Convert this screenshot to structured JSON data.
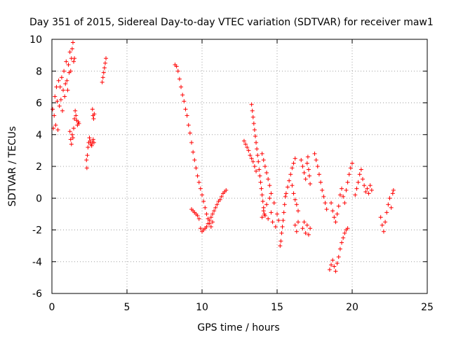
{
  "chart_data": {
    "type": "scatter",
    "title": "Day 351 of 2015, Sidereal Day-to-day VTEC variation (SDTVAR) for receiver maw1",
    "xlabel": "GPS time / hours",
    "ylabel": "SDTVAR / TECUs",
    "xlim": [
      0,
      25
    ],
    "ylim": [
      -6,
      10
    ],
    "xticks": [
      "0",
      "5",
      "10",
      "15",
      "20",
      "25"
    ],
    "yticks": [
      "-6",
      "-4",
      "-2",
      "0",
      "2",
      "4",
      "6",
      "8",
      "10"
    ],
    "grid": true,
    "marker": "+",
    "color": "#ff0000",
    "series": [
      {
        "name": "maw1",
        "points": [
          [
            0.05,
            5.6
          ],
          [
            0.1,
            4.4
          ],
          [
            0.15,
            5.2
          ],
          [
            0.2,
            6.4
          ],
          [
            0.25,
            4.6
          ],
          [
            0.3,
            7.0
          ],
          [
            0.35,
            6.1
          ],
          [
            0.4,
            4.3
          ],
          [
            0.45,
            7.4
          ],
          [
            0.5,
            5.8
          ],
          [
            0.55,
            7.0
          ],
          [
            0.6,
            6.2
          ],
          [
            0.65,
            7.6
          ],
          [
            0.7,
            5.5
          ],
          [
            0.75,
            6.8
          ],
          [
            0.8,
            8.0
          ],
          [
            0.85,
            6.4
          ],
          [
            0.9,
            7.2
          ],
          [
            0.95,
            8.6
          ],
          [
            1.0,
            7.4
          ],
          [
            1.05,
            6.8
          ],
          [
            1.1,
            8.4
          ],
          [
            1.15,
            7.9
          ],
          [
            1.2,
            9.2
          ],
          [
            1.25,
            8.0
          ],
          [
            1.3,
            8.8
          ],
          [
            1.35,
            9.4
          ],
          [
            1.4,
            9.8
          ],
          [
            1.45,
            8.6
          ],
          [
            1.5,
            8.8
          ],
          [
            1.2,
            4.2
          ],
          [
            1.25,
            3.7
          ],
          [
            1.3,
            3.4
          ],
          [
            1.35,
            4.0
          ],
          [
            1.4,
            3.8
          ],
          [
            1.45,
            4.4
          ],
          [
            1.5,
            5.0
          ],
          [
            1.55,
            5.5
          ],
          [
            1.6,
            5.2
          ],
          [
            1.65,
            4.9
          ],
          [
            1.7,
            4.6
          ],
          [
            1.75,
            4.8
          ],
          [
            1.8,
            4.7
          ],
          [
            2.3,
            2.4
          ],
          [
            2.33,
            1.9
          ],
          [
            2.36,
            2.7
          ],
          [
            2.4,
            3.2
          ],
          [
            2.45,
            3.5
          ],
          [
            2.5,
            3.8
          ],
          [
            2.55,
            3.6
          ],
          [
            2.6,
            3.4
          ],
          [
            2.65,
            3.3
          ],
          [
            2.7,
            3.5
          ],
          [
            2.75,
            3.7
          ],
          [
            2.8,
            3.5
          ],
          [
            2.7,
            5.6
          ],
          [
            2.74,
            5.2
          ],
          [
            2.78,
            5.0
          ],
          [
            2.82,
            5.3
          ],
          [
            3.35,
            7.3
          ],
          [
            3.4,
            7.6
          ],
          [
            3.45,
            7.9
          ],
          [
            3.5,
            8.2
          ],
          [
            3.55,
            8.5
          ],
          [
            3.6,
            8.8
          ],
          [
            8.2,
            8.4
          ],
          [
            8.3,
            8.3
          ],
          [
            8.4,
            8.0
          ],
          [
            8.5,
            7.5
          ],
          [
            8.6,
            7.0
          ],
          [
            8.7,
            6.5
          ],
          [
            8.8,
            6.1
          ],
          [
            8.9,
            5.6
          ],
          [
            9.0,
            5.2
          ],
          [
            9.1,
            4.6
          ],
          [
            9.2,
            4.1
          ],
          [
            9.3,
            3.5
          ],
          [
            9.4,
            2.9
          ],
          [
            9.5,
            2.4
          ],
          [
            9.6,
            1.9
          ],
          [
            9.7,
            1.4
          ],
          [
            9.8,
            1.0
          ],
          [
            9.9,
            0.6
          ],
          [
            10.0,
            0.2
          ],
          [
            10.1,
            -0.2
          ],
          [
            10.2,
            -0.6
          ],
          [
            10.3,
            -1.0
          ],
          [
            10.4,
            -1.3
          ],
          [
            10.5,
            -1.6
          ],
          [
            10.6,
            -1.8
          ],
          [
            10.7,
            -1.5
          ],
          [
            9.3,
            -0.7
          ],
          [
            9.4,
            -0.8
          ],
          [
            9.5,
            -0.9
          ],
          [
            9.6,
            -1.0
          ],
          [
            9.7,
            -1.1
          ],
          [
            9.8,
            -1.3
          ],
          [
            9.9,
            -1.9
          ],
          [
            10.0,
            -2.1
          ],
          [
            10.1,
            -2.0
          ],
          [
            10.2,
            -1.9
          ],
          [
            10.3,
            -1.8
          ],
          [
            10.4,
            -1.6
          ],
          [
            10.5,
            -1.4
          ],
          [
            10.6,
            -1.2
          ],
          [
            10.7,
            -1.0
          ],
          [
            10.8,
            -0.8
          ],
          [
            10.9,
            -0.6
          ],
          [
            11.0,
            -0.4
          ],
          [
            11.1,
            -0.2
          ],
          [
            11.2,
            -0.1
          ],
          [
            11.3,
            0.1
          ],
          [
            11.4,
            0.3
          ],
          [
            11.5,
            0.4
          ],
          [
            11.6,
            0.5
          ],
          [
            12.8,
            3.6
          ],
          [
            12.9,
            3.4
          ],
          [
            13.0,
            3.2
          ],
          [
            13.1,
            3.0
          ],
          [
            13.2,
            2.7
          ],
          [
            13.3,
            2.5
          ],
          [
            13.4,
            2.3
          ],
          [
            13.5,
            2.0
          ],
          [
            13.6,
            1.7
          ],
          [
            13.3,
            5.9
          ],
          [
            13.35,
            5.5
          ],
          [
            13.4,
            5.1
          ],
          [
            13.45,
            4.7
          ],
          [
            13.5,
            4.3
          ],
          [
            13.55,
            3.9
          ],
          [
            13.6,
            3.5
          ],
          [
            13.65,
            3.1
          ],
          [
            13.7,
            2.7
          ],
          [
            13.75,
            2.3
          ],
          [
            13.8,
            1.8
          ],
          [
            13.85,
            1.4
          ],
          [
            13.9,
            1.0
          ],
          [
            13.95,
            0.6
          ],
          [
            14.0,
            0.2
          ],
          [
            14.05,
            -0.2
          ],
          [
            14.1,
            -0.6
          ],
          [
            14.15,
            -1.0
          ],
          [
            14.0,
            2.8
          ],
          [
            14.1,
            2.4
          ],
          [
            14.2,
            2.0
          ],
          [
            14.3,
            1.6
          ],
          [
            14.4,
            1.2
          ],
          [
            14.5,
            0.8
          ],
          [
            14.6,
            0.3
          ],
          [
            14.0,
            -1.2
          ],
          [
            14.1,
            -0.8
          ],
          [
            14.2,
            -1.1
          ],
          [
            14.3,
            -0.4
          ],
          [
            14.4,
            -1.3
          ],
          [
            14.5,
            0.0
          ],
          [
            14.6,
            -0.9
          ],
          [
            14.7,
            -1.5
          ],
          [
            14.8,
            -0.3
          ],
          [
            14.9,
            -1.8
          ],
          [
            15.0,
            -1.0
          ],
          [
            15.1,
            -1.4
          ],
          [
            15.2,
            -3.0
          ],
          [
            15.25,
            -2.7
          ],
          [
            15.3,
            -2.2
          ],
          [
            15.35,
            -1.8
          ],
          [
            15.4,
            -1.4
          ],
          [
            15.45,
            -0.9
          ],
          [
            15.5,
            -0.4
          ],
          [
            15.55,
            0.1
          ],
          [
            15.6,
            0.3
          ],
          [
            15.7,
            0.7
          ],
          [
            15.8,
            1.1
          ],
          [
            15.9,
            1.5
          ],
          [
            16.0,
            1.9
          ],
          [
            16.1,
            2.2
          ],
          [
            16.2,
            2.5
          ],
          [
            16.0,
            0.8
          ],
          [
            16.1,
            0.3
          ],
          [
            16.2,
            -0.1
          ],
          [
            16.3,
            -0.4
          ],
          [
            16.4,
            -0.8
          ],
          [
            16.2,
            -1.7
          ],
          [
            16.3,
            -2.1
          ],
          [
            16.4,
            -1.5
          ],
          [
            16.6,
            2.4
          ],
          [
            16.7,
            2.0
          ],
          [
            16.8,
            1.6
          ],
          [
            16.9,
            1.2
          ],
          [
            17.0,
            2.2
          ],
          [
            17.05,
            2.6
          ],
          [
            17.1,
            1.8
          ],
          [
            17.15,
            1.4
          ],
          [
            17.2,
            0.9
          ],
          [
            16.7,
            -1.9
          ],
          [
            16.8,
            -1.5
          ],
          [
            16.9,
            -2.2
          ],
          [
            17.0,
            -1.7
          ],
          [
            17.1,
            -2.3
          ],
          [
            17.2,
            -1.9
          ],
          [
            17.5,
            2.8
          ],
          [
            17.6,
            2.4
          ],
          [
            17.7,
            2.0
          ],
          [
            17.8,
            1.5
          ],
          [
            17.9,
            1.0
          ],
          [
            18.0,
            0.5
          ],
          [
            18.1,
            0.1
          ],
          [
            18.2,
            -0.3
          ],
          [
            18.3,
            -0.7
          ],
          [
            18.5,
            -4.5
          ],
          [
            18.6,
            -4.2
          ],
          [
            18.7,
            -3.9
          ],
          [
            18.8,
            -4.3
          ],
          [
            18.9,
            -4.6
          ],
          [
            19.0,
            -4.1
          ],
          [
            19.1,
            -3.7
          ],
          [
            19.2,
            -3.2
          ],
          [
            19.3,
            -2.8
          ],
          [
            19.4,
            -2.5
          ],
          [
            19.5,
            -2.2
          ],
          [
            19.6,
            -2.0
          ],
          [
            19.7,
            -1.9
          ],
          [
            18.6,
            -0.3
          ],
          [
            18.7,
            -0.8
          ],
          [
            18.8,
            -1.2
          ],
          [
            18.9,
            -1.5
          ],
          [
            19.0,
            -1.0
          ],
          [
            19.1,
            -0.5
          ],
          [
            19.2,
            0.2
          ],
          [
            19.3,
            0.6
          ],
          [
            19.4,
            0.1
          ],
          [
            19.5,
            -0.3
          ],
          [
            19.6,
            0.5
          ],
          [
            19.7,
            1.0
          ],
          [
            19.8,
            1.5
          ],
          [
            19.9,
            1.9
          ],
          [
            20.0,
            2.2
          ],
          [
            20.2,
            0.2
          ],
          [
            20.3,
            0.6
          ],
          [
            20.4,
            1.0
          ],
          [
            20.5,
            1.5
          ],
          [
            20.6,
            1.8
          ],
          [
            20.7,
            1.2
          ],
          [
            20.8,
            0.8
          ],
          [
            20.9,
            0.4
          ],
          [
            21.0,
            0.6
          ],
          [
            21.1,
            0.3
          ],
          [
            21.2,
            0.8
          ],
          [
            21.3,
            0.5
          ],
          [
            21.9,
            -1.2
          ],
          [
            22.0,
            -1.7
          ],
          [
            22.1,
            -2.1
          ],
          [
            22.2,
            -1.5
          ],
          [
            22.3,
            -0.9
          ],
          [
            22.4,
            -0.4
          ],
          [
            22.5,
            0.0
          ],
          [
            22.6,
            -0.6
          ],
          [
            22.7,
            0.3
          ],
          [
            22.75,
            0.5
          ]
        ]
      }
    ]
  }
}
